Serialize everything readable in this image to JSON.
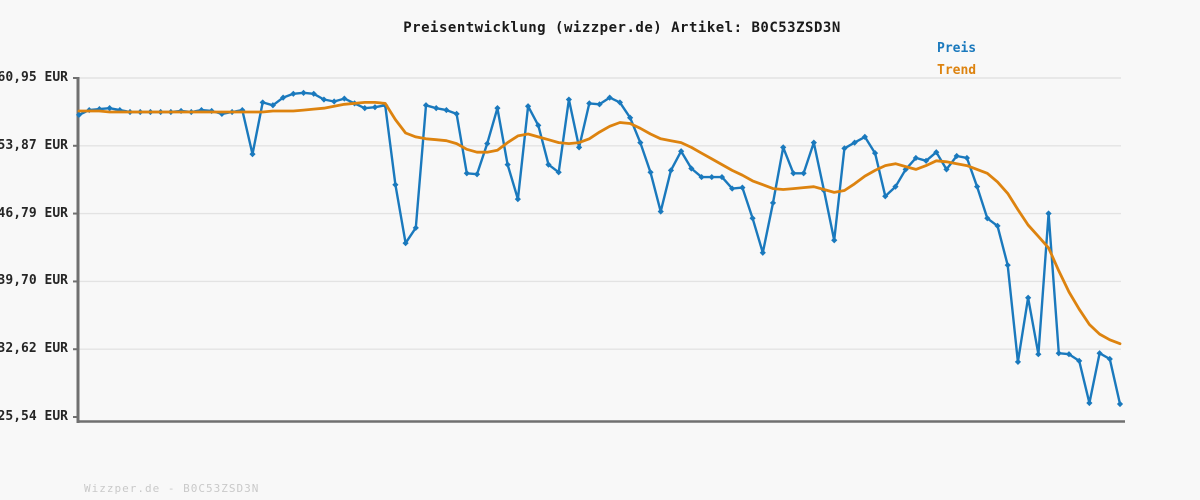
{
  "title": "Preisentwicklung (wizzper.de) Artikel: B0C53ZSD3N",
  "footer": "Wizzper.de - B0C53ZSD3N",
  "legend": {
    "items": [
      {
        "label": "Preis",
        "color": "#1a79bd"
      },
      {
        "label": "Trend",
        "color": "#dd830f"
      }
    ]
  },
  "axis": {
    "y_labels": [
      "60,95 EUR",
      "53,87 EUR",
      "46,79 EUR",
      "39,70 EUR",
      "32,62 EUR",
      "25,54 EUR"
    ],
    "currency": "EUR"
  },
  "colors": {
    "background": "#f8f8f8",
    "gridline": "#e3e3e3",
    "spine": "#707070",
    "price_line": "#1a79bd",
    "trend_line": "#dd830f",
    "title_text": "#1a1a1a",
    "tick_text": "#262626",
    "footer_text": "#c9c9c9"
  },
  "chart_data": {
    "type": "line",
    "title": "Preisentwicklung (wizzper.de) Artikel: B0C53ZSD3N",
    "xlabel": "",
    "ylabel": "EUR",
    "ylim": [
      25.54,
      60.95
    ],
    "y_tick_values": [
      60.95,
      53.87,
      46.79,
      39.7,
      32.62,
      25.54
    ],
    "grid": true,
    "legend_position": "top-right",
    "x_axis_labels_visible": false,
    "series": [
      {
        "name": "Preis",
        "color": "#1a79bd",
        "marker": "diamond",
        "values": [
          57.1,
          57.6,
          57.7,
          57.8,
          57.6,
          57.4,
          57.4,
          57.4,
          57.4,
          57.4,
          57.5,
          57.4,
          57.6,
          57.5,
          57.2,
          57.4,
          57.6,
          53.0,
          58.4,
          58.1,
          58.9,
          59.3,
          59.4,
          59.3,
          58.7,
          58.5,
          58.8,
          58.3,
          57.8,
          57.9,
          58.1,
          49.8,
          43.7,
          45.3,
          58.1,
          57.8,
          57.6,
          57.2,
          51.0,
          50.9,
          54.1,
          57.8,
          51.9,
          48.3,
          58.0,
          56.0,
          51.9,
          51.1,
          58.7,
          53.7,
          58.3,
          58.2,
          58.9,
          58.4,
          56.8,
          54.2,
          51.1,
          47.0,
          51.3,
          53.3,
          51.5,
          50.6,
          50.6,
          50.6,
          49.4,
          49.5,
          46.3,
          42.7,
          47.9,
          53.7,
          51.0,
          51.0,
          54.2,
          49.2,
          44.0,
          53.6,
          54.2,
          54.8,
          53.1,
          48.6,
          49.6,
          51.4,
          52.6,
          52.3,
          53.2,
          51.4,
          52.8,
          52.6,
          49.6,
          46.3,
          45.5,
          41.4,
          31.3,
          38.0,
          32.1,
          46.8,
          32.2,
          32.1,
          31.4,
          27.0,
          32.2,
          31.6,
          26.9
        ]
      },
      {
        "name": "Trend",
        "color": "#dd830f",
        "marker": "none",
        "values": [
          57.5,
          57.5,
          57.5,
          57.4,
          57.4,
          57.4,
          57.4,
          57.4,
          57.4,
          57.4,
          57.4,
          57.4,
          57.4,
          57.4,
          57.4,
          57.4,
          57.4,
          57.4,
          57.4,
          57.5,
          57.5,
          57.5,
          57.6,
          57.7,
          57.8,
          58.0,
          58.2,
          58.3,
          58.4,
          58.4,
          58.3,
          56.6,
          55.2,
          54.8,
          54.6,
          54.5,
          54.4,
          54.1,
          53.5,
          53.2,
          53.2,
          53.4,
          54.2,
          54.9,
          55.1,
          54.8,
          54.5,
          54.2,
          54.1,
          54.2,
          54.6,
          55.3,
          55.9,
          56.3,
          56.2,
          55.7,
          55.1,
          54.6,
          54.4,
          54.2,
          53.7,
          53.1,
          52.5,
          51.9,
          51.3,
          50.8,
          50.2,
          49.8,
          49.4,
          49.3,
          49.4,
          49.5,
          49.6,
          49.3,
          49.0,
          49.2,
          49.9,
          50.7,
          51.3,
          51.8,
          52.0,
          51.7,
          51.4,
          51.8,
          52.3,
          52.2,
          52.0,
          51.8,
          51.4,
          51.0,
          50.1,
          48.9,
          47.2,
          45.6,
          44.4,
          43.2,
          40.8,
          38.6,
          36.8,
          35.2,
          34.2,
          33.6,
          33.2
        ]
      }
    ]
  }
}
